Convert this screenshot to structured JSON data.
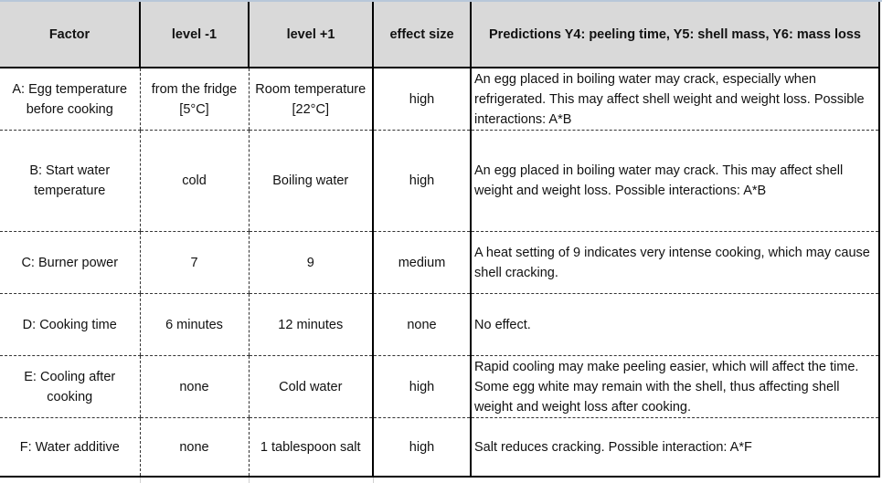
{
  "headers": [
    "Factor",
    "level -1",
    "level +1",
    "effect size",
    "Predictions Y4: peeling time, Y5: shell mass, Y6: mass loss"
  ],
  "rows": [
    {
      "factor": "A: Egg temperature before cooking",
      "low": "from the fridge [5°C]",
      "high": "Room temperature [22°C]",
      "effect": "high",
      "prediction": "An egg placed in boiling water may crack, especially when refrigerated. This may affect shell weight and weight loss. Possible interactions: A*B"
    },
    {
      "factor": "B: Start water temperature",
      "low": "cold",
      "high": "Boiling water",
      "effect": "high",
      "prediction": "An egg placed in boiling water may crack. This may affect shell weight and weight loss. Possible interactions: A*B"
    },
    {
      "factor": "C: Burner power",
      "low": "7",
      "high": "9",
      "effect": "medium",
      "prediction": "A heat setting of 9 indicates very intense cooking, which may cause shell cracking."
    },
    {
      "factor": "D: Cooking time",
      "low": "6 minutes",
      "high": "12 minutes",
      "effect": "none",
      "prediction": "No effect."
    },
    {
      "factor": "E: Cooling after cooking",
      "low": "none",
      "high": "Cold water",
      "effect": "high",
      "prediction": "Rapid cooling may make peeling easier, which will affect the time. Some egg white may remain with the shell, thus affecting shell weight and weight loss after cooking."
    },
    {
      "factor": "F: Water additive",
      "low": "none",
      "high": "1 tablespoon salt",
      "effect": "high",
      "prediction": "Salt reduces cracking. Possible interaction: A*F"
    }
  ]
}
